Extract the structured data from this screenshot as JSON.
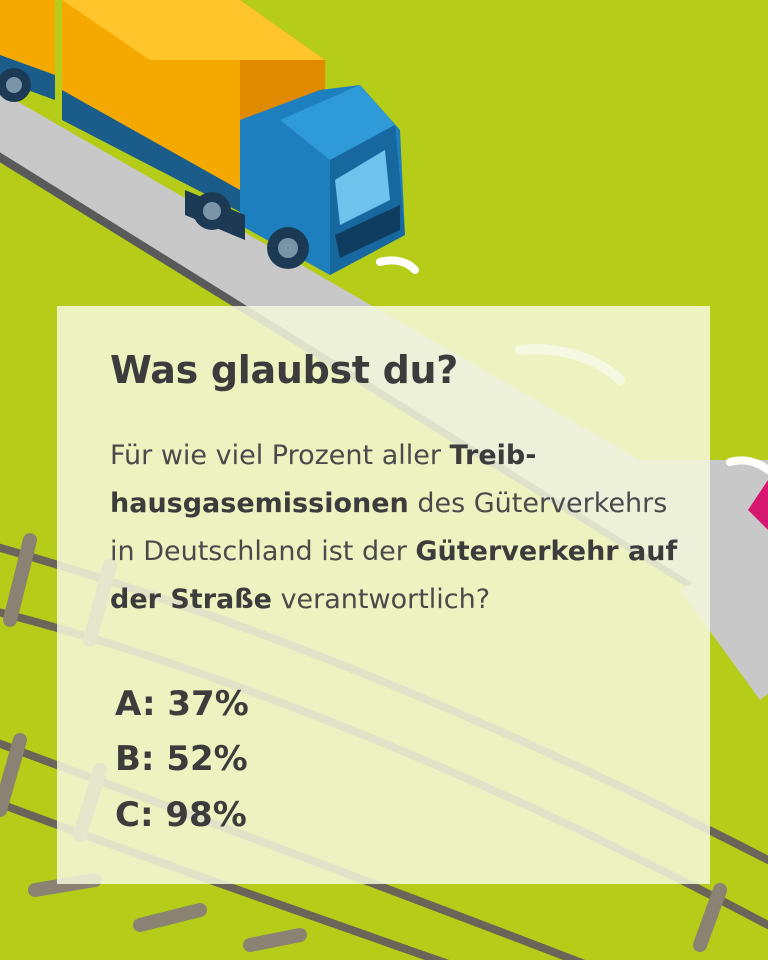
{
  "colors": {
    "background": "#b5cc18",
    "road": "#c8c8c8",
    "truck_cab": "#1e7fbf",
    "truck_cargo": "#f5a800",
    "text": "#3c3c3c"
  },
  "icons": [
    "truck-illustration",
    "road-illustration",
    "railway-illustration"
  ],
  "quiz": {
    "title": "Was glaubst du?",
    "question": {
      "t1": "Für wie viel Prozent aller ",
      "b1": "Treib­hausgasemissionen",
      "t2": " des Güter­verkehrs in Deutschland ist der ",
      "b2": "Güterverkehr auf der Straße",
      "t3": " verantwortlich?"
    },
    "options": [
      "A: 37%",
      "B: 52%",
      "C: 98%"
    ]
  }
}
